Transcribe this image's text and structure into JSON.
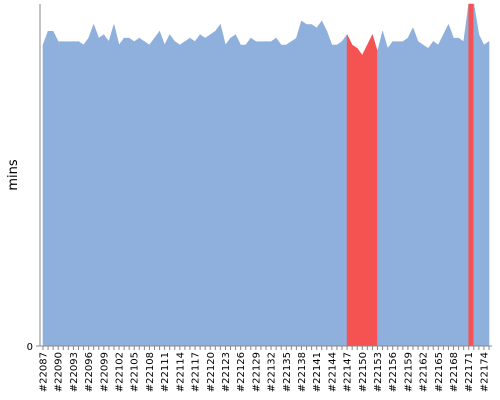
{
  "chart_data": {
    "type": "area",
    "y_label": "mins",
    "categories": [
      "#22087",
      null,
      null,
      "#22090",
      null,
      null,
      "#22093",
      null,
      null,
      "#22096",
      null,
      null,
      "#22099",
      null,
      null,
      "#22102",
      null,
      null,
      "#22105",
      null,
      null,
      "#22108",
      null,
      null,
      "#22111",
      null,
      null,
      "#22114",
      null,
      null,
      "#22117",
      null,
      null,
      "#22120",
      null,
      null,
      "#22123",
      null,
      null,
      "#22126",
      null,
      null,
      "#22129",
      null,
      null,
      "#22132",
      null,
      null,
      "#22135",
      null,
      null,
      "#22138",
      null,
      null,
      "#22141",
      null,
      null,
      "#22144",
      null,
      null,
      "#22147",
      null,
      null,
      "#22150",
      null,
      null,
      "#22153",
      null,
      null,
      "#22156",
      null,
      null,
      "#22159",
      null,
      null,
      "#22162",
      null,
      null,
      "#22165",
      null,
      null,
      "#22168",
      null,
      null,
      "#22171",
      null,
      null,
      "#22174",
      null
    ],
    "values": [
      8.8,
      9.2,
      9.2,
      8.9,
      8.9,
      8.9,
      8.9,
      8.9,
      8.8,
      9.0,
      9.4,
      9.0,
      9.1,
      8.9,
      9.4,
      8.8,
      9.0,
      9.0,
      8.9,
      9.0,
      8.9,
      8.8,
      9.0,
      9.2,
      8.8,
      9.1,
      8.9,
      8.8,
      8.9,
      9.0,
      8.9,
      9.1,
      9.0,
      9.1,
      9.2,
      9.4,
      8.8,
      9.0,
      9.1,
      8.8,
      8.8,
      9.0,
      8.9,
      8.9,
      8.9,
      8.9,
      9.0,
      8.8,
      8.8,
      8.9,
      9.0,
      9.5,
      9.4,
      9.4,
      9.3,
      9.5,
      9.2,
      8.8,
      8.8,
      8.9,
      9.1,
      8.8,
      8.7,
      8.5,
      8.8,
      9.1,
      8.6,
      9.2,
      8.7,
      8.9,
      8.9,
      8.9,
      9.0,
      9.3,
      8.9,
      8.8,
      8.7,
      8.9,
      8.8,
      9.1,
      9.4,
      9.0,
      9.0,
      8.9,
      10,
      10,
      9.1,
      8.8,
      8.9
    ],
    "colors": [
      "#8fb0dc",
      "#8fb0dc",
      "#8fb0dc",
      "#8fb0dc",
      "#8fb0dc",
      "#8fb0dc",
      "#8fb0dc",
      "#8fb0dc",
      "#8fb0dc",
      "#8fb0dc",
      "#8fb0dc",
      "#8fb0dc",
      "#8fb0dc",
      "#8fb0dc",
      "#8fb0dc",
      "#8fb0dc",
      "#8fb0dc",
      "#8fb0dc",
      "#8fb0dc",
      "#8fb0dc",
      "#8fb0dc",
      "#8fb0dc",
      "#8fb0dc",
      "#8fb0dc",
      "#8fb0dc",
      "#8fb0dc",
      "#8fb0dc",
      "#8fb0dc",
      "#8fb0dc",
      "#8fb0dc",
      "#8fb0dc",
      "#8fb0dc",
      "#8fb0dc",
      "#8fb0dc",
      "#8fb0dc",
      "#8fb0dc",
      "#8fb0dc",
      "#8fb0dc",
      "#8fb0dc",
      "#8fb0dc",
      "#8fb0dc",
      "#8fb0dc",
      "#8fb0dc",
      "#8fb0dc",
      "#8fb0dc",
      "#8fb0dc",
      "#8fb0dc",
      "#8fb0dc",
      "#8fb0dc",
      "#8fb0dc",
      "#8fb0dc",
      "#8fb0dc",
      "#8fb0dc",
      "#8fb0dc",
      "#8fb0dc",
      "#8fb0dc",
      "#8fb0dc",
      "#8fb0dc",
      "#8fb0dc",
      "#8fb0dc",
      "#8fb0dc",
      "#f55353",
      "#f55353",
      "#f55353",
      "#f55353",
      "#f55353",
      "#f55353",
      "#8fb0dc",
      "#8fb0dc",
      "#8fb0dc",
      "#8fb0dc",
      "#8fb0dc",
      "#8fb0dc",
      "#8fb0dc",
      "#8fb0dc",
      "#8fb0dc",
      "#8fb0dc",
      "#8fb0dc",
      "#8fb0dc",
      "#8fb0dc",
      "#8fb0dc",
      "#8fb0dc",
      "#8fb0dc",
      "#8fb0dc",
      "#8fb0dc",
      "#f55353",
      "#8fb0dc",
      "#8fb0dc",
      "#8fb0dc"
    ],
    "ylim": [
      0,
      10
    ],
    "yticks": [
      0
    ]
  }
}
